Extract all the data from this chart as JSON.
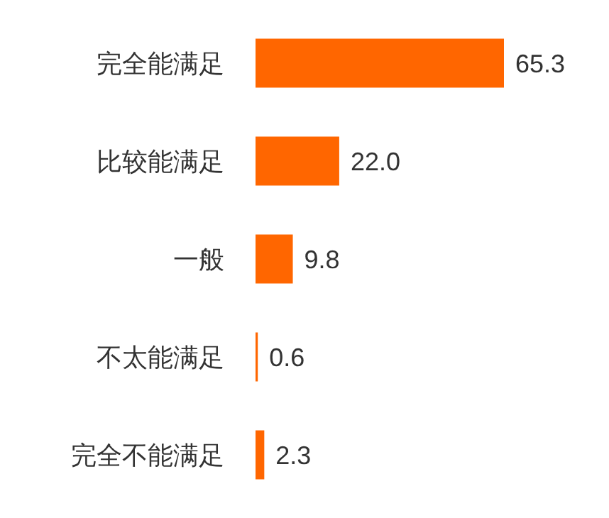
{
  "chart_data": {
    "type": "bar",
    "orientation": "horizontal",
    "categories": [
      "完全能满足",
      "比较能满足",
      "一般",
      "不太能满足",
      "完全不能满足"
    ],
    "values": [
      65.3,
      22.0,
      9.8,
      0.6,
      2.3
    ],
    "value_labels": [
      "65.3",
      "22.0",
      "9.8",
      "0.6",
      "2.3"
    ],
    "color": "#ff6600"
  }
}
